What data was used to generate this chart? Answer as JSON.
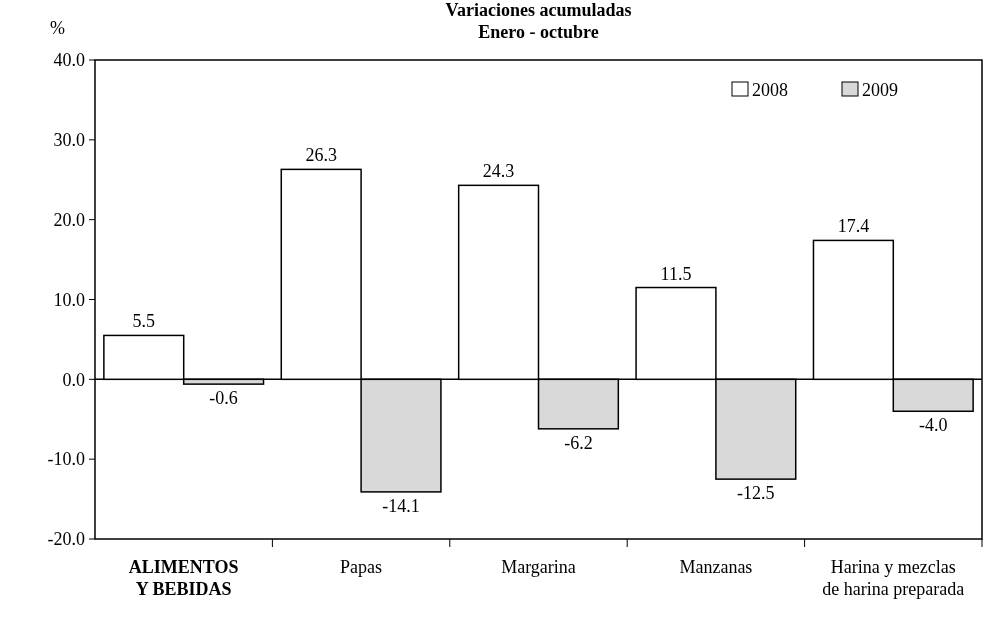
{
  "chart_data": {
    "type": "bar",
    "title": "Variaciones acumuladas",
    "subtitle": "Enero - octubre",
    "ylabel": "%",
    "categories": [
      "ALIMENTOS\nY BEBIDAS",
      "Papas",
      "Margarina",
      "Manzanas",
      "Harina y mezclas\nde harina preparada"
    ],
    "series": [
      {
        "name": "2008",
        "color": "#ffffff",
        "values": [
          5.5,
          26.3,
          24.3,
          11.5,
          17.4
        ],
        "value_labels": [
          "5.5",
          "26.3",
          "24.3",
          "11.5",
          "17.4"
        ]
      },
      {
        "name": "2009",
        "color": "#d9d9d9",
        "values": [
          -0.6,
          -14.1,
          -6.2,
          -12.5,
          -4.0
        ],
        "value_labels": [
          "-0.6",
          "-14.1",
          "-6.2",
          "-12.5",
          "-4.0"
        ]
      }
    ],
    "ylim": [
      -20,
      40
    ],
    "yticks": [
      {
        "value": -20,
        "label": "-20.0"
      },
      {
        "value": -10,
        "label": "-10.0"
      },
      {
        "value": 0,
        "label": "0.0"
      },
      {
        "value": 10,
        "label": "10.0"
      },
      {
        "value": 20,
        "label": "20.0"
      },
      {
        "value": 30,
        "label": "30.0"
      },
      {
        "value": 40,
        "label": "40.0"
      }
    ],
    "legend": "top right"
  }
}
